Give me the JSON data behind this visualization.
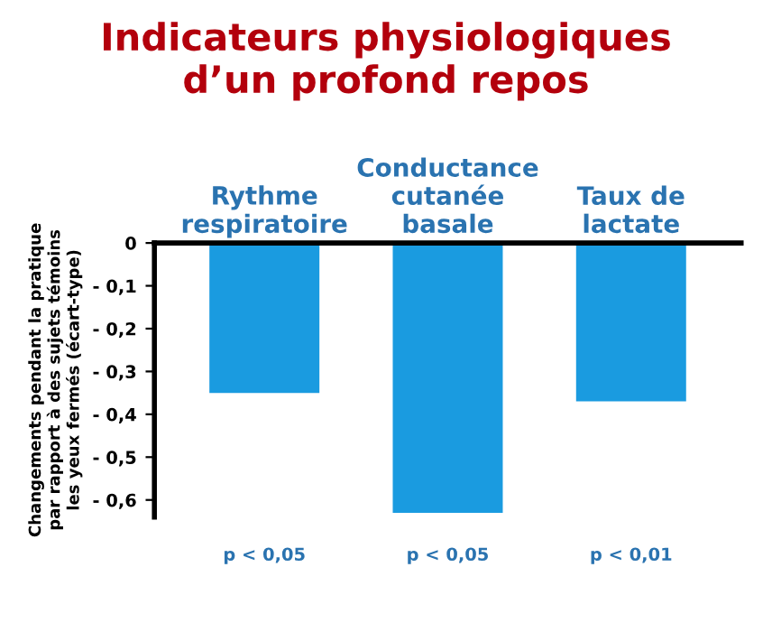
{
  "chart_data": {
    "type": "bar",
    "title": "Indicateurs physiologiques\nd’un profond repos",
    "ylabel": "Changements pendant la pratique\npar rapport à des sujets témoins\nles yeux fermés (écart-type)",
    "categories": [
      "Rythme\nrespiratoire",
      "Conductance\ncutanée\nbasale",
      "Taux de\nlactate"
    ],
    "values": [
      -0.35,
      -0.63,
      -0.37
    ],
    "color": "#1a9be0",
    "ylim": [
      -0.64,
      0
    ],
    "yticks": [
      {
        "value": 0,
        "label": "0"
      },
      {
        "value": -0.1,
        "label": "- 0,1"
      },
      {
        "value": -0.2,
        "label": "- 0,2"
      },
      {
        "value": -0.3,
        "label": "- 0,3"
      },
      {
        "value": -0.4,
        "label": "- 0,4"
      },
      {
        "value": -0.5,
        "label": "- 0,5"
      },
      {
        "value": -0.6,
        "label": "- 0,6"
      }
    ],
    "annotations": [
      "p < 0,05",
      "p < 0,05",
      "p < 0,01"
    ],
    "grid": false,
    "legend": false
  }
}
